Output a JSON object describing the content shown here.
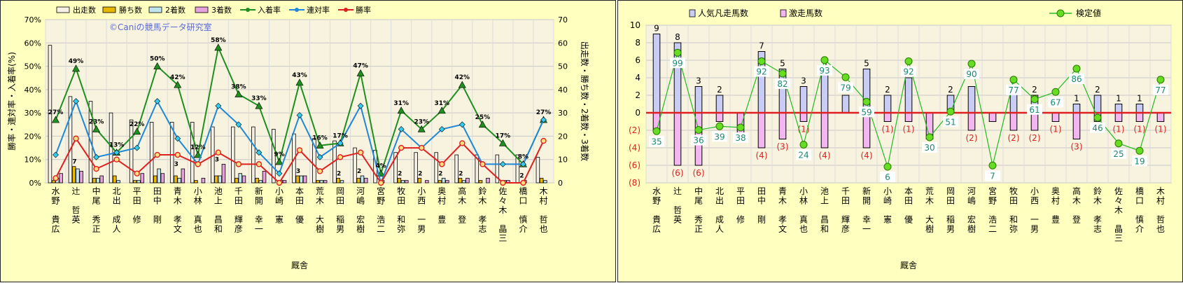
{
  "watermark": "©Caniの競馬データ研究室",
  "chart_data": [
    {
      "type": "bar",
      "xlabel": "厩舎",
      "ylabel_left": "勝率・連対率・入着率(%)",
      "ylabel_right": "出走数・勝ち数・2着数・3着数",
      "ylim_left": [
        0,
        70
      ],
      "ylim_right": [
        0,
        70
      ],
      "ticks_left": [
        "0%",
        "10%",
        "20%",
        "30%",
        "40%",
        "50%",
        "60%",
        "70%"
      ],
      "ticks_right": [
        "0",
        "10",
        "20",
        "30",
        "40",
        "50",
        "60",
        "70"
      ],
      "categories": [
        "水野 貴広",
        "辻 哲英",
        "中尾 秀正",
        "北出 成人",
        "平田 修",
        "田中 剛",
        "青木 孝文",
        "小林 真也",
        "池上 昌和",
        "千田 輝彦",
        "新開 幸一",
        "小崎 憲",
        "本田 優",
        "荒木 大樹",
        "岡田 稲男",
        "河嶋 宏樹",
        "宮野 浩二",
        "牧田 和弥",
        "小西 一男",
        "奥村 豊",
        "高木 登",
        "鈴木 孝志",
        "佐々木 晶三",
        "橋口 慎介",
        "木村 哲也"
      ],
      "series": [
        {
          "name": "出走数",
          "kind": "bar",
          "color": "#f6f1e6",
          "values": [
            59,
            37,
            35,
            30,
            27,
            26,
            26,
            26,
            24,
            24,
            24,
            23,
            21,
            19,
            18,
            15,
            14,
            13,
            13,
            13,
            12,
            12,
            12,
            12,
            11
          ]
        },
        {
          "name": "勝ち数",
          "kind": "bar",
          "color": "#e8b800",
          "values": [
            1,
            7,
            2,
            3,
            1,
            3,
            3,
            1,
            3,
            2,
            2,
            0,
            3,
            1,
            2,
            2,
            0,
            2,
            2,
            1,
            2,
            1,
            0,
            0,
            2
          ]
        },
        {
          "name": "2着数",
          "kind": "bar",
          "color": "#bfe6ee",
          "values": [
            2,
            6,
            2,
            1,
            1,
            6,
            2,
            0,
            3,
            4,
            1,
            1,
            3,
            1,
            1,
            3,
            1,
            1,
            0,
            2,
            1,
            0,
            1,
            1,
            1
          ]
        },
        {
          "name": "3着数",
          "kind": "bar",
          "color": "#e6a2dc",
          "values": [
            4,
            5,
            3,
            0,
            4,
            4,
            6,
            2,
            8,
            3,
            5,
            1,
            3,
            1,
            0,
            2,
            0,
            1,
            1,
            1,
            2,
            2,
            1,
            0,
            0
          ]
        },
        {
          "name": "入着率",
          "kind": "line",
          "color": "#1f8f1f",
          "values": [
            27,
            49,
            23,
            13,
            22,
            50,
            42,
            12,
            58,
            38,
            33,
            9,
            43,
            16,
            17,
            47,
            4,
            31,
            23,
            31,
            42,
            25,
            17,
            8,
            27
          ]
        },
        {
          "name": "連対率",
          "kind": "line",
          "color": "#1e88d8",
          "values": [
            12,
            35,
            11,
            13,
            15,
            35,
            19,
            8,
            33,
            25,
            13,
            4,
            29,
            11,
            17,
            33,
            0,
            23,
            15,
            23,
            25,
            8,
            8,
            8,
            27
          ]
        },
        {
          "name": "勝率",
          "kind": "line",
          "color": "#e02020",
          "values": [
            2,
            19,
            6,
            10,
            4,
            12,
            12,
            8,
            13,
            8,
            8,
            0,
            14,
            5,
            11,
            13,
            0,
            15,
            15,
            8,
            17,
            8,
            0,
            0,
            18
          ]
        }
      ],
      "bar_labels": [
        "",
        "7",
        "",
        "",
        "",
        "",
        "3",
        "",
        "3",
        "",
        "",
        "",
        "3",
        "",
        "2",
        "2",
        "",
        "2",
        "2",
        "2",
        "2",
        "",
        "",
        "2",
        ""
      ],
      "rate_labels": [
        "27%",
        "49%",
        "23%",
        "13%",
        "22%",
        "50%",
        "42%",
        "12%",
        "58%",
        "38%",
        "33%",
        "9%",
        "43%",
        "16%",
        "17%",
        "47%",
        "4%",
        "31%",
        "23%",
        "31%",
        "42%",
        "25%",
        "17%",
        "8%",
        "27%"
      ],
      "legend": "top"
    },
    {
      "type": "bar",
      "xlabel": "厩舎",
      "ylim": [
        -8,
        10
      ],
      "ticks": [
        "10",
        "8",
        "6",
        "4",
        "2",
        "0",
        "(2)",
        "(4)",
        "(6)",
        "(8)"
      ],
      "categories": [
        "水野 貴広",
        "辻 哲英",
        "中尾 秀正",
        "北出 成人",
        "平田 修",
        "田中 剛",
        "青木 孝文",
        "小林 真也",
        "池上 昌和",
        "千田 輝彦",
        "新開 幸一",
        "小崎 憲",
        "本田 優",
        "荒木 大樹",
        "岡田 稲男",
        "河嶋 宏樹",
        "宮野 浩二",
        "牧田 和弥",
        "小西 一男",
        "奥村 豊",
        "高木 登",
        "鈴木 孝志",
        "佐々木 晶三",
        "橋口 慎介",
        "木村 哲也"
      ],
      "series": [
        {
          "name": "人気凡走馬数",
          "kind": "bar",
          "color": "#c9cdf5",
          "values": [
            9,
            8,
            3,
            2,
            0,
            7,
            5,
            3,
            5,
            2,
            5,
            2,
            4,
            0,
            2,
            3,
            0,
            3,
            2,
            0,
            1,
            2,
            1,
            1,
            0
          ]
        },
        {
          "name": "激走馬数",
          "kind": "bar",
          "color": "#f3b6f0",
          "values": [
            -2,
            -6,
            -6,
            -1,
            -3,
            -4,
            -3,
            -1,
            -4,
            0,
            -4,
            -1,
            -1,
            -3,
            0,
            -2,
            -1,
            -2,
            -2,
            -1,
            -3,
            -1,
            -1,
            -1,
            -1
          ]
        },
        {
          "name": "検定値",
          "kind": "line",
          "color": "#22bb22",
          "values": [
            35,
            99,
            36,
            39,
            38,
            92,
            82,
            24,
            93,
            79,
            59,
            6,
            92,
            30,
            51,
            90,
            7,
            77,
            61,
            67,
            86,
            46,
            25,
            19,
            77
          ]
        }
      ],
      "pos_labels": [
        "9",
        "8",
        "3",
        "2",
        "",
        "7",
        "5",
        "3",
        "5",
        "",
        "5",
        "2",
        "",
        "",
        "2",
        "",
        "",
        "3",
        "2",
        "",
        "1",
        "2",
        "1",
        "1",
        ""
      ],
      "neg_labels": [
        "",
        "(6)",
        "(6)",
        "",
        "",
        "(4)",
        "(3)",
        "(1)",
        "(4)",
        "",
        "(4)",
        "(1)",
        "(1)",
        "",
        "",
        "(2)",
        "",
        "(2)",
        "(2)",
        "(1)",
        "(3)",
        "",
        "(1)",
        "(1)",
        "(1)"
      ],
      "legend": "top"
    }
  ]
}
